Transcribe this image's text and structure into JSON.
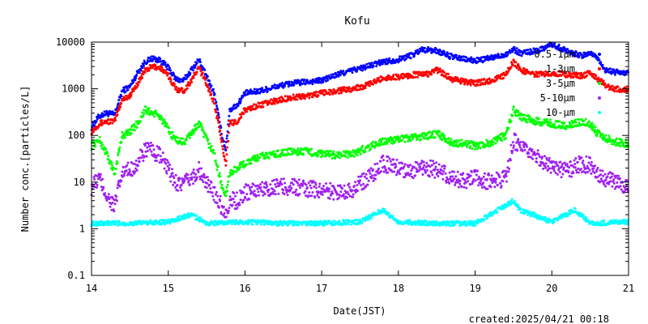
{
  "chart_data": {
    "type": "scatter",
    "title": "Kofu",
    "xlabel": "Date(JST)",
    "ylabel": "Number conc.[particles/L]",
    "x_range": [
      14,
      21
    ],
    "y_range": [
      0.1,
      10000
    ],
    "y_scale": "log",
    "x_ticks": [
      "14",
      "15",
      "16",
      "17",
      "18",
      "19",
      "20",
      "21"
    ],
    "y_ticks": [
      "0.1",
      "1",
      "10",
      "100",
      "1000",
      "10000"
    ],
    "legend_position": "top-right",
    "series": [
      {
        "name": "0.5-1μm",
        "color": "#0000ff",
        "points": [
          [
            14.0,
            150
          ],
          [
            14.1,
            260
          ],
          [
            14.2,
            300
          ],
          [
            14.3,
            280
          ],
          [
            14.4,
            900
          ],
          [
            14.5,
            1100
          ],
          [
            14.6,
            2200
          ],
          [
            14.7,
            3800
          ],
          [
            14.8,
            4500
          ],
          [
            14.9,
            4000
          ],
          [
            15.0,
            2800
          ],
          [
            15.1,
            1600
          ],
          [
            15.2,
            1500
          ],
          [
            15.3,
            2500
          ],
          [
            15.4,
            4200
          ],
          [
            15.5,
            1800
          ],
          [
            15.6,
            800
          ],
          [
            15.7,
            100
          ],
          [
            15.75,
            50
          ],
          [
            15.8,
            350
          ],
          [
            15.9,
            450
          ],
          [
            16.0,
            800
          ],
          [
            16.2,
            900
          ],
          [
            16.4,
            1100
          ],
          [
            16.6,
            1300
          ],
          [
            16.8,
            1400
          ],
          [
            17.0,
            1500
          ],
          [
            17.2,
            2000
          ],
          [
            17.4,
            2500
          ],
          [
            17.6,
            3000
          ],
          [
            17.8,
            3800
          ],
          [
            18.0,
            4200
          ],
          [
            18.2,
            5500
          ],
          [
            18.3,
            7000
          ],
          [
            18.5,
            6500
          ],
          [
            18.7,
            4800
          ],
          [
            18.9,
            4200
          ],
          [
            19.0,
            4000
          ],
          [
            19.2,
            4500
          ],
          [
            19.4,
            5500
          ],
          [
            19.5,
            7000
          ],
          [
            19.6,
            5800
          ],
          [
            19.8,
            6500
          ],
          [
            20.0,
            9000
          ],
          [
            20.2,
            6500
          ],
          [
            20.4,
            5000
          ],
          [
            20.5,
            6000
          ],
          [
            20.6,
            4500
          ],
          [
            20.7,
            2500
          ],
          [
            20.8,
            2300
          ],
          [
            20.9,
            2200
          ],
          [
            21.0,
            2200
          ]
        ]
      },
      {
        "name": "1-3μm",
        "color": "#ff0000",
        "points": [
          [
            14.0,
            120
          ],
          [
            14.1,
            180
          ],
          [
            14.2,
            200
          ],
          [
            14.3,
            200
          ],
          [
            14.4,
            600
          ],
          [
            14.5,
            700
          ],
          [
            14.6,
            1300
          ],
          [
            14.7,
            2500
          ],
          [
            14.8,
            3000
          ],
          [
            14.9,
            2800
          ],
          [
            15.0,
            1900
          ],
          [
            15.1,
            1000
          ],
          [
            15.2,
            900
          ],
          [
            15.3,
            1500
          ],
          [
            15.4,
            2800
          ],
          [
            15.5,
            1300
          ],
          [
            15.6,
            500
          ],
          [
            15.7,
            70
          ],
          [
            15.75,
            25
          ],
          [
            15.8,
            180
          ],
          [
            15.9,
            200
          ],
          [
            16.0,
            350
          ],
          [
            16.2,
            450
          ],
          [
            16.4,
            550
          ],
          [
            16.6,
            650
          ],
          [
            16.8,
            700
          ],
          [
            17.0,
            800
          ],
          [
            17.2,
            900
          ],
          [
            17.4,
            1000
          ],
          [
            17.6,
            1200
          ],
          [
            17.8,
            1700
          ],
          [
            18.0,
            1800
          ],
          [
            18.2,
            2000
          ],
          [
            18.4,
            2100
          ],
          [
            18.5,
            2600
          ],
          [
            18.7,
            1600
          ],
          [
            18.9,
            1400
          ],
          [
            19.0,
            1300
          ],
          [
            19.2,
            1500
          ],
          [
            19.4,
            2000
          ],
          [
            19.5,
            3800
          ],
          [
            19.6,
            2500
          ],
          [
            19.8,
            2000
          ],
          [
            20.0,
            2200
          ],
          [
            20.2,
            2000
          ],
          [
            20.4,
            1900
          ],
          [
            20.5,
            2200
          ],
          [
            20.6,
            1600
          ],
          [
            20.7,
            1200
          ],
          [
            20.8,
            1000
          ],
          [
            20.9,
            950
          ],
          [
            21.0,
            1000
          ]
        ]
      },
      {
        "name": "3-5μm",
        "color": "#00ff00",
        "points": [
          [
            14.0,
            60
          ],
          [
            14.1,
            80
          ],
          [
            14.2,
            40
          ],
          [
            14.3,
            15
          ],
          [
            14.4,
            100
          ],
          [
            14.5,
            120
          ],
          [
            14.6,
            180
          ],
          [
            14.7,
            350
          ],
          [
            14.8,
            300
          ],
          [
            14.9,
            250
          ],
          [
            15.0,
            130
          ],
          [
            15.1,
            80
          ],
          [
            15.2,
            70
          ],
          [
            15.3,
            110
          ],
          [
            15.4,
            180
          ],
          [
            15.5,
            80
          ],
          [
            15.6,
            40
          ],
          [
            15.7,
            8
          ],
          [
            15.75,
            5
          ],
          [
            15.8,
            15
          ],
          [
            15.9,
            20
          ],
          [
            16.0,
            25
          ],
          [
            16.2,
            35
          ],
          [
            16.4,
            40
          ],
          [
            16.6,
            45
          ],
          [
            16.8,
            45
          ],
          [
            17.0,
            40
          ],
          [
            17.2,
            38
          ],
          [
            17.4,
            40
          ],
          [
            17.6,
            55
          ],
          [
            17.8,
            75
          ],
          [
            18.0,
            80
          ],
          [
            18.2,
            90
          ],
          [
            18.4,
            100
          ],
          [
            18.5,
            110
          ],
          [
            18.7,
            70
          ],
          [
            18.9,
            65
          ],
          [
            19.0,
            60
          ],
          [
            19.2,
            70
          ],
          [
            19.4,
            100
          ],
          [
            19.5,
            350
          ],
          [
            19.6,
            250
          ],
          [
            19.8,
            200
          ],
          [
            20.0,
            180
          ],
          [
            20.2,
            160
          ],
          [
            20.4,
            200
          ],
          [
            20.5,
            180
          ],
          [
            20.6,
            110
          ],
          [
            20.7,
            90
          ],
          [
            20.8,
            75
          ],
          [
            20.9,
            70
          ],
          [
            21.0,
            65
          ]
        ]
      },
      {
        "name": "5-10μm",
        "color": "#a020f0",
        "points": [
          [
            14.0,
            8
          ],
          [
            14.1,
            12
          ],
          [
            14.2,
            5
          ],
          [
            14.3,
            3
          ],
          [
            14.4,
            15
          ],
          [
            14.5,
            18
          ],
          [
            14.6,
            25
          ],
          [
            14.7,
            50
          ],
          [
            14.8,
            45
          ],
          [
            14.9,
            35
          ],
          [
            15.0,
            18
          ],
          [
            15.1,
            10
          ],
          [
            15.2,
            9
          ],
          [
            15.3,
            12
          ],
          [
            15.4,
            18
          ],
          [
            15.5,
            9
          ],
          [
            15.6,
            6
          ],
          [
            15.7,
            3
          ],
          [
            15.75,
            2
          ],
          [
            15.8,
            4
          ],
          [
            15.9,
            4
          ],
          [
            16.0,
            6
          ],
          [
            16.2,
            7
          ],
          [
            16.4,
            8
          ],
          [
            16.6,
            8
          ],
          [
            16.8,
            7
          ],
          [
            17.0,
            7
          ],
          [
            17.2,
            6
          ],
          [
            17.4,
            7
          ],
          [
            17.6,
            12
          ],
          [
            17.8,
            25
          ],
          [
            18.0,
            20
          ],
          [
            18.2,
            18
          ],
          [
            18.4,
            20
          ],
          [
            18.5,
            18
          ],
          [
            18.7,
            12
          ],
          [
            18.9,
            11
          ],
          [
            19.0,
            12
          ],
          [
            19.2,
            10
          ],
          [
            19.4,
            12
          ],
          [
            19.5,
            80
          ],
          [
            19.6,
            50
          ],
          [
            19.8,
            35
          ],
          [
            20.0,
            20
          ],
          [
            20.2,
            18
          ],
          [
            20.4,
            25
          ],
          [
            20.5,
            22
          ],
          [
            20.6,
            15
          ],
          [
            20.7,
            12
          ],
          [
            20.8,
            10
          ],
          [
            20.9,
            9
          ],
          [
            21.0,
            9
          ]
        ]
      },
      {
        "name": "10-μm",
        "color": "#00ffff",
        "points": [
          [
            14.0,
            1.3
          ],
          [
            14.5,
            1.3
          ],
          [
            15.0,
            1.4
          ],
          [
            15.3,
            2.0
          ],
          [
            15.5,
            1.3
          ],
          [
            16.0,
            1.4
          ],
          [
            16.5,
            1.3
          ],
          [
            17.0,
            1.3
          ],
          [
            17.5,
            1.4
          ],
          [
            17.8,
            2.5
          ],
          [
            18.0,
            1.4
          ],
          [
            18.5,
            1.3
          ],
          [
            19.0,
            1.3
          ],
          [
            19.5,
            4.0
          ],
          [
            19.6,
            2.5
          ],
          [
            20.0,
            1.4
          ],
          [
            20.3,
            2.5
          ],
          [
            20.5,
            1.3
          ],
          [
            21.0,
            1.4
          ]
        ]
      }
    ]
  },
  "footer": {
    "created": "created:2025/04/21 00:18"
  }
}
